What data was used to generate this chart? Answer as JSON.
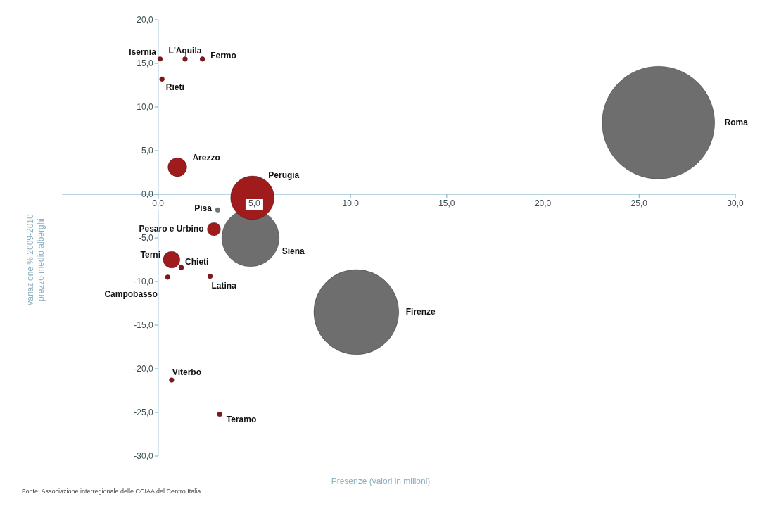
{
  "chart_data": {
    "type": "bubble",
    "xlabel": "Presenze (valori in milioni)",
    "ylabel": "variazione % 2009-2010\nprezzo medio alberghi",
    "annotations": [
      "Fonte: Associazione interregionale delle CCIAA del Centro Italia"
    ],
    "xlim": [
      -5,
      30
    ],
    "xticks": [
      {
        "value": 0,
        "label": "0,0"
      },
      {
        "value": 5,
        "label": "5,0"
      },
      {
        "value": 10,
        "label": "10,0"
      },
      {
        "value": 15,
        "label": "15,0"
      },
      {
        "value": 20,
        "label": "20,0"
      },
      {
        "value": 25,
        "label": "25,0"
      },
      {
        "value": 30,
        "label": "30,0"
      }
    ],
    "ylim": [
      -30,
      20
    ],
    "yticks": [
      {
        "value": -30,
        "label": "-30,0"
      },
      {
        "value": -25,
        "label": "-25,0"
      },
      {
        "value": -20,
        "label": "-20,0"
      },
      {
        "value": -15,
        "label": "-15,0"
      },
      {
        "value": -10,
        "label": "-10,0"
      },
      {
        "value": -5,
        "label": "-5,0"
      },
      {
        "value": 0,
        "label": "0,0"
      },
      {
        "value": 5,
        "label": "5,0"
      },
      {
        "value": 10,
        "label": "10,0"
      },
      {
        "value": 15,
        "label": "15,0"
      },
      {
        "value": 20,
        "label": "20,0"
      }
    ],
    "series": [
      {
        "name": "Roma",
        "color": "#6e6e6e",
        "x": [
          26.0
        ],
        "values": [
          8.2
        ],
        "sizes": [
          1
        ]
      },
      {
        "name": "Firenze",
        "color": "#6e6e6e",
        "x": [
          10.3
        ],
        "values": [
          -13.5
        ],
        "sizes": [
          0.57
        ]
      },
      {
        "name": "Siena",
        "color": "#6e6e6e",
        "x": [
          4.8
        ],
        "values": [
          -5.0
        ],
        "sizes": [
          0.26
        ]
      },
      {
        "name": "Perugia",
        "color": "#a01c1c",
        "x": [
          4.9
        ],
        "values": [
          -0.4
        ],
        "sizes": [
          0.15
        ]
      },
      {
        "name": "Arezzo",
        "color": "#a01c1c",
        "x": [
          1.0
        ],
        "values": [
          3.1
        ],
        "sizes": [
          0.028
        ]
      },
      {
        "name": "Pisa",
        "color": "#6f7777",
        "x": [
          3.1
        ],
        "values": [
          -1.8
        ],
        "sizes": [
          0.002
        ]
      },
      {
        "name": "Pesaro e Urbino",
        "color": "#a01c1c",
        "x": [
          2.9
        ],
        "values": [
          -4.0
        ],
        "sizes": [
          0.014
        ]
      },
      {
        "name": "Terni",
        "color": "#a01c1c",
        "x": [
          0.7
        ],
        "values": [
          -7.5
        ],
        "sizes": [
          0.022
        ]
      },
      {
        "name": "Chieti",
        "color": "#7a1a1c",
        "x": [
          1.2
        ],
        "values": [
          -8.4
        ],
        "sizes": [
          0.002
        ]
      },
      {
        "name": "Campobasso",
        "color": "#7a1a1c",
        "x": [
          0.5
        ],
        "values": [
          -9.5
        ],
        "sizes": [
          0.002
        ]
      },
      {
        "name": "Latina",
        "color": "#7a1a1c",
        "x": [
          2.7
        ],
        "values": [
          -9.4
        ],
        "sizes": [
          0.002
        ]
      },
      {
        "name": "L'Aquila",
        "color": "#7a1a1c",
        "x": [
          1.4
        ],
        "values": [
          15.5
        ],
        "sizes": [
          0.002
        ]
      },
      {
        "name": "Isernia",
        "color": "#7a1a1c",
        "x": [
          0.1
        ],
        "values": [
          15.5
        ],
        "sizes": [
          0.002
        ]
      },
      {
        "name": "Fermo",
        "color": "#7a1a1c",
        "x": [
          2.3
        ],
        "values": [
          15.5
        ],
        "sizes": [
          0.002
        ]
      },
      {
        "name": "Rieti",
        "color": "#7a1a1c",
        "x": [
          0.2
        ],
        "values": [
          13.2
        ],
        "sizes": [
          0.002
        ]
      },
      {
        "name": "Viterbo",
        "color": "#7a1a1c",
        "x": [
          0.7
        ],
        "values": [
          -21.3
        ],
        "sizes": [
          0.002
        ]
      },
      {
        "name": "Teramo",
        "color": "#7a1a1c",
        "x": [
          3.2
        ],
        "values": [
          -25.2
        ],
        "sizes": [
          0.002
        ]
      }
    ]
  }
}
